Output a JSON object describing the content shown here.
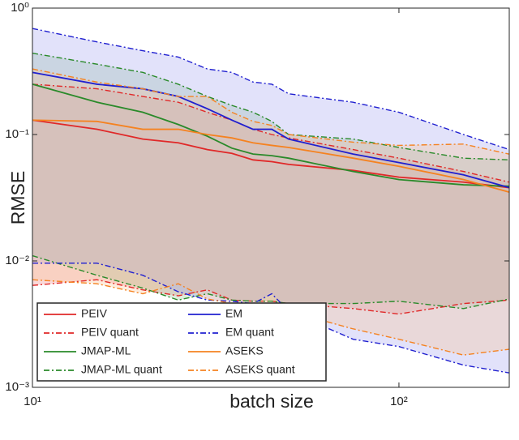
{
  "chart_data": {
    "type": "line",
    "xlabel": "batch size",
    "ylabel": "RMSE",
    "xscale": "log",
    "yscale": "log",
    "xlim": [
      10,
      200
    ],
    "ylim": [
      0.001,
      1
    ],
    "xticks": [
      {
        "value": 10,
        "label": "10¹"
      },
      {
        "value": 100,
        "label": "10²"
      }
    ],
    "yticks": [
      {
        "value": 0.001,
        "label": "10⁻³"
      },
      {
        "value": 0.01,
        "label": "10⁻²"
      },
      {
        "value": 0.1,
        "label": "10⁻¹"
      },
      {
        "value": 1,
        "label": "10⁰"
      }
    ],
    "legend": "lower left",
    "x": [
      10,
      15,
      20,
      25,
      30,
      35,
      40,
      45,
      50,
      75,
      100,
      150,
      200
    ],
    "series": [
      {
        "name": "PEIV",
        "color": "#e02828",
        "style": "solid",
        "values": [
          0.13,
          0.11,
          0.092,
          0.086,
          0.076,
          0.071,
          0.063,
          0.061,
          0.058,
          0.052,
          0.046,
          0.042,
          0.038
        ]
      },
      {
        "name": "PEIV quant",
        "color": "#e02828",
        "style": "dashdot",
        "fill": "#f08080",
        "upper": [
          0.25,
          0.23,
          0.2,
          0.18,
          0.15,
          0.13,
          0.11,
          0.1,
          0.094,
          0.076,
          0.065,
          0.051,
          0.042
        ],
        "lower": [
          0.0064,
          0.0071,
          0.0059,
          0.0053,
          0.0059,
          0.0049,
          0.0048,
          0.0048,
          0.0046,
          0.0042,
          0.0038,
          0.0046,
          0.0049
        ]
      },
      {
        "name": "JMAP-ML",
        "color": "#2a8a2a",
        "style": "solid",
        "values": [
          0.25,
          0.18,
          0.15,
          0.12,
          0.097,
          0.078,
          0.07,
          0.068,
          0.065,
          0.051,
          0.044,
          0.04,
          0.039
        ]
      },
      {
        "name": "JMAP-ML quant",
        "color": "#2a8a2a",
        "style": "dashdot",
        "fill": "#90c090",
        "upper": [
          0.44,
          0.36,
          0.31,
          0.25,
          0.2,
          0.17,
          0.15,
          0.127,
          0.1,
          0.092,
          0.079,
          0.065,
          0.063
        ],
        "lower": [
          0.011,
          0.0077,
          0.0061,
          0.0049,
          0.0055,
          0.0049,
          0.0048,
          0.0048,
          0.0046,
          0.0046,
          0.0048,
          0.0042,
          0.005
        ]
      },
      {
        "name": "EM",
        "color": "#2020d0",
        "style": "solid",
        "values": [
          0.31,
          0.25,
          0.23,
          0.2,
          0.16,
          0.13,
          0.11,
          0.11,
          0.092,
          0.07,
          0.06,
          0.048,
          0.038
        ]
      },
      {
        "name": "EM quant",
        "color": "#2020d0",
        "style": "dashdot",
        "fill": "#a0a0f0",
        "upper": [
          0.69,
          0.54,
          0.46,
          0.41,
          0.33,
          0.31,
          0.26,
          0.25,
          0.21,
          0.18,
          0.15,
          0.1,
          0.076
        ],
        "lower": [
          0.0096,
          0.0096,
          0.0077,
          0.0057,
          0.0049,
          0.0048,
          0.0046,
          0.0055,
          0.004,
          0.0024,
          0.0021,
          0.0015,
          0.0013
        ]
      },
      {
        "name": "ASEKS",
        "color": "#f58220",
        "style": "solid",
        "values": [
          0.13,
          0.127,
          0.11,
          0.11,
          0.1,
          0.094,
          0.086,
          0.082,
          0.079,
          0.065,
          0.056,
          0.044,
          0.035
        ]
      },
      {
        "name": "ASEKS quant",
        "color": "#f58220",
        "style": "dashdot",
        "fill": "#f8c090",
        "upper": [
          0.33,
          0.26,
          0.23,
          0.2,
          0.2,
          0.15,
          0.127,
          0.118,
          0.1,
          0.087,
          0.082,
          0.084,
          0.07
        ],
        "lower": [
          0.0071,
          0.0066,
          0.0055,
          0.0066,
          0.005,
          0.0046,
          0.0042,
          0.0044,
          0.004,
          0.0029,
          0.0024,
          0.0018,
          0.002
        ]
      }
    ]
  }
}
